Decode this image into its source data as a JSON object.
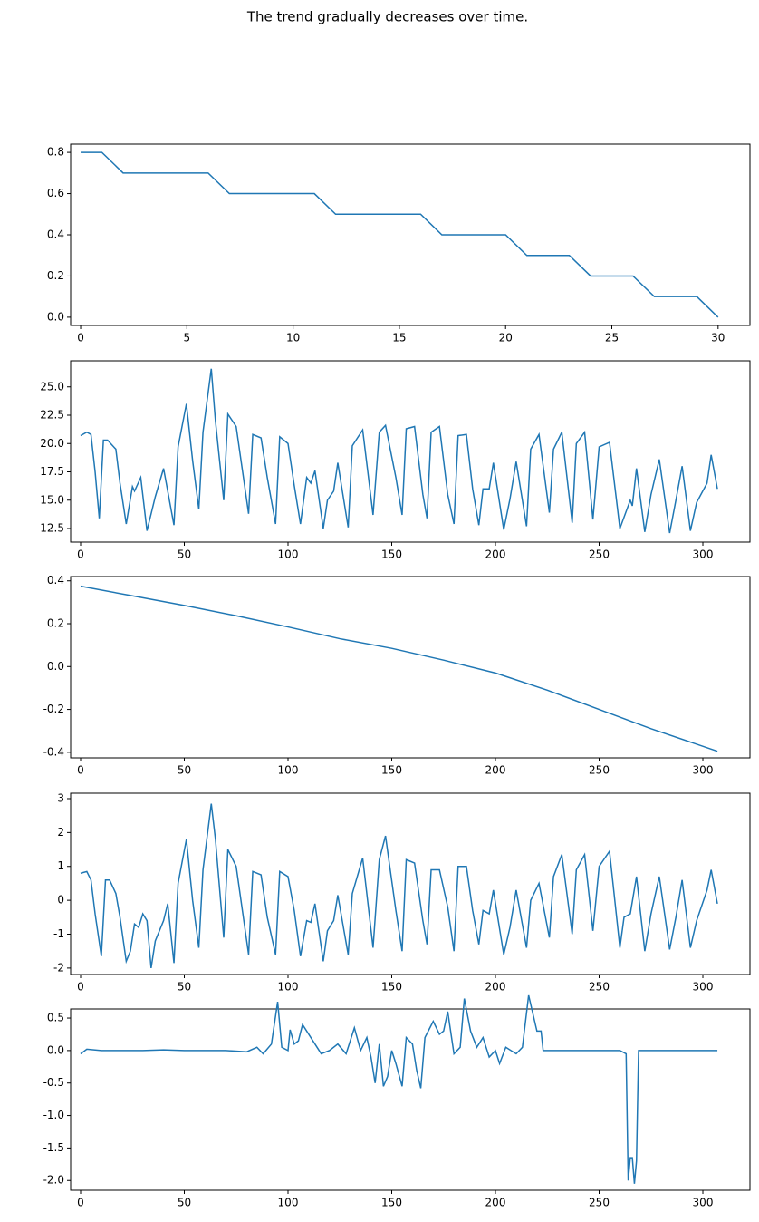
{
  "title": "The trend gradually decreases over time.",
  "chart_data": [
    {
      "type": "line",
      "color": "#1f77b4",
      "x": [
        0,
        1,
        2,
        3,
        4,
        5,
        6,
        7,
        8,
        9,
        10,
        11,
        12,
        13,
        14,
        15,
        16,
        17,
        18,
        19,
        20,
        21,
        22,
        23,
        24,
        25,
        26,
        27,
        28,
        29,
        30
      ],
      "values": [
        0.8,
        0.8,
        0.7,
        0.7,
        0.7,
        0.7,
        0.7,
        0.6,
        0.6,
        0.6,
        0.6,
        0.6,
        0.5,
        0.5,
        0.5,
        0.5,
        0.5,
        0.4,
        0.4,
        0.4,
        0.4,
        0.3,
        0.3,
        0.3,
        0.2,
        0.2,
        0.2,
        0.1,
        0.1,
        0.1,
        0.0
      ],
      "xlim": [
        -0.47,
        31.5
      ],
      "ylim": [
        -0.04,
        0.84
      ],
      "xticks": [
        0,
        5,
        10,
        15,
        20,
        25,
        30
      ],
      "yticks": [
        {
          "value": 0,
          "label": "0.0"
        },
        0.2,
        0.4,
        0.6,
        0.8
      ]
    },
    {
      "type": "line",
      "color": "#1f77b4",
      "x": [
        0,
        3,
        5,
        7,
        9,
        11,
        13,
        17,
        19,
        22,
        25,
        26,
        29,
        32,
        36,
        40,
        45,
        47,
        51,
        54,
        57,
        59,
        63,
        65,
        69,
        71,
        75,
        81,
        83,
        87,
        90,
        94,
        96,
        100,
        103,
        106,
        109,
        111,
        113,
        117,
        119,
        122,
        124,
        129,
        131,
        136,
        141,
        144,
        147,
        152,
        155,
        157,
        161,
        165,
        167,
        169,
        173,
        177,
        180,
        182,
        186,
        189,
        192,
        194,
        197,
        199,
        204,
        207,
        210,
        215,
        217,
        221,
        226,
        228,
        232,
        237,
        239,
        243,
        247,
        250,
        255,
        260,
        265,
        266,
        268,
        272,
        275,
        279,
        284,
        287,
        290,
        294,
        297,
        302,
        304,
        307
      ],
      "values": [
        20.7,
        21,
        20.8,
        17.5,
        13.4,
        20.3,
        20.3,
        19.5,
        16.5,
        12.9,
        16.2,
        15.8,
        17,
        12.3,
        15.3,
        17.8,
        12.8,
        19.7,
        23.5,
        18.5,
        14.2,
        21,
        26.6,
        22,
        15,
        22.6,
        21.5,
        13.8,
        20.8,
        20.5,
        17,
        12.9,
        20.6,
        20,
        16.3,
        12.9,
        17,
        16.5,
        17.6,
        12.5,
        15,
        15.8,
        18.3,
        12.6,
        19.8,
        21.2,
        13.7,
        21,
        21.6,
        17,
        13.7,
        21.3,
        21.5,
        15.5,
        13.4,
        21,
        21.5,
        15.5,
        12.9,
        20.7,
        20.8,
        16,
        12.8,
        16,
        16,
        18.3,
        12.4,
        15.1,
        18.4,
        12.7,
        19.5,
        20.8,
        13.9,
        19.5,
        21,
        13,
        20,
        21,
        13.3,
        19.7,
        20.1,
        12.5,
        15,
        14.5,
        17.8,
        12.2,
        15.5,
        18.6,
        12.1,
        15,
        18,
        12.3,
        14.8,
        16.5,
        19,
        16
      ],
      "xlim": [
        -4.8,
        322.7
      ],
      "ylim": [
        11.3,
        27.3
      ],
      "xticks": [
        0,
        50,
        100,
        150,
        200,
        250,
        300
      ],
      "yticks": [
        12.5,
        {
          "value": 15,
          "label": "15.0"
        },
        17.5,
        {
          "value": 20,
          "label": "20.0"
        },
        22.5,
        {
          "value": 25,
          "label": "25.0"
        }
      ]
    },
    {
      "type": "line",
      "color": "#1f77b4",
      "x": [
        0,
        25,
        50,
        75,
        100,
        125,
        150,
        175,
        200,
        225,
        250,
        275,
        307
      ],
      "values": [
        0.375,
        0.33,
        0.285,
        0.237,
        0.185,
        0.13,
        0.085,
        0.03,
        -0.03,
        -0.11,
        -0.2,
        -0.29,
        -0.395
      ],
      "xlim": [
        -4.8,
        322.7
      ],
      "ylim": [
        -0.426,
        0.42
      ],
      "xticks": [
        0,
        50,
        100,
        150,
        200,
        250,
        300
      ],
      "yticks": [
        -0.4,
        -0.2,
        {
          "value": 0,
          "label": "0.0"
        },
        0.2,
        0.4
      ]
    },
    {
      "type": "line",
      "color": "#1f77b4",
      "x": [
        0,
        3,
        5,
        7,
        10,
        12,
        14,
        17,
        19,
        22,
        24,
        26,
        28,
        30,
        32,
        34,
        36,
        40,
        42,
        45,
        47,
        51,
        54,
        57,
        59,
        63,
        65,
        69,
        71,
        75,
        81,
        83,
        87,
        90,
        94,
        96,
        100,
        103,
        106,
        109,
        111,
        113,
        117,
        119,
        122,
        124,
        129,
        131,
        136,
        141,
        144,
        147,
        152,
        155,
        157,
        161,
        165,
        167,
        169,
        173,
        177,
        180,
        182,
        186,
        189,
        192,
        194,
        197,
        199,
        204,
        207,
        210,
        215,
        217,
        221,
        226,
        228,
        232,
        237,
        239,
        243,
        247,
        250,
        255,
        260,
        262,
        265,
        268,
        272,
        275,
        279,
        284,
        287,
        290,
        294,
        297,
        302,
        304,
        307
      ],
      "values": [
        0.8,
        0.85,
        0.6,
        -0.4,
        -1.65,
        0.6,
        0.6,
        0.2,
        -0.5,
        -1.8,
        -1.5,
        -0.7,
        -0.8,
        -0.4,
        -0.6,
        -2.0,
        -1.2,
        -0.6,
        -0.1,
        -1.85,
        0.5,
        1.8,
        0.0,
        -1.4,
        0.9,
        2.85,
        1.8,
        -1.1,
        1.5,
        1.0,
        -1.6,
        0.85,
        0.75,
        -0.5,
        -1.6,
        0.85,
        0.7,
        -0.3,
        -1.65,
        -0.6,
        -0.65,
        -0.1,
        -1.8,
        -0.9,
        -0.6,
        0.15,
        -1.6,
        0.2,
        1.25,
        -1.4,
        1.2,
        1.9,
        -0.3,
        -1.5,
        1.2,
        1.1,
        -0.6,
        -1.3,
        0.9,
        0.9,
        -0.2,
        -1.5,
        1.0,
        1.0,
        -0.3,
        -1.3,
        -0.3,
        -0.4,
        0.3,
        -1.6,
        -0.8,
        0.3,
        -1.4,
        0.0,
        0.5,
        -1.1,
        0.7,
        1.35,
        -1.0,
        0.9,
        1.35,
        -0.9,
        1.0,
        1.45,
        -1.4,
        -0.5,
        -0.4,
        0.7,
        -1.5,
        -0.4,
        0.7,
        -1.45,
        -0.5,
        0.6,
        -1.4,
        -0.6,
        0.3,
        0.9,
        -0.1
      ],
      "xlim": [
        -4.8,
        322.7
      ],
      "ylim": [
        -2.19,
        3.16
      ],
      "xticks": [
        0,
        50,
        100,
        150,
        200,
        250,
        300
      ],
      "yticks": [
        -2,
        -1,
        0,
        1,
        2,
        3
      ]
    },
    {
      "type": "line",
      "color": "#1f77b4",
      "x": [
        0,
        3,
        10,
        20,
        30,
        40,
        50,
        60,
        70,
        80,
        85,
        88,
        92,
        95,
        97,
        100,
        101,
        103,
        105,
        107,
        110,
        113,
        116,
        120,
        124,
        128,
        132,
        135,
        138,
        140,
        142,
        144,
        146,
        148,
        150,
        152,
        155,
        157,
        160,
        162,
        164,
        166,
        170,
        173,
        175,
        177,
        180,
        183,
        185,
        188,
        191,
        194,
        197,
        200,
        202,
        205,
        210,
        213,
        216,
        220,
        222,
        223,
        230,
        240,
        250,
        260,
        263,
        264,
        265,
        266,
        267,
        268,
        269,
        275,
        285,
        295,
        307
      ],
      "values": [
        -0.05,
        0.02,
        0.0,
        0.0,
        0.0,
        0.01,
        0.0,
        0.0,
        0.0,
        -0.02,
        0.05,
        -0.05,
        0.1,
        0.75,
        0.05,
        0.0,
        0.32,
        0.1,
        0.15,
        0.4,
        0.25,
        0.1,
        -0.05,
        0.0,
        0.1,
        -0.05,
        0.35,
        0.0,
        0.2,
        -0.1,
        -0.5,
        0.1,
        -0.55,
        -0.4,
        0.0,
        -0.2,
        -0.55,
        0.2,
        0.1,
        -0.3,
        -0.58,
        0.2,
        0.45,
        0.25,
        0.3,
        0.6,
        -0.05,
        0.05,
        0.8,
        0.3,
        0.05,
        0.2,
        -0.1,
        0.0,
        -0.2,
        0.05,
        -0.05,
        0.05,
        0.85,
        0.3,
        0.3,
        0.0,
        0.0,
        0.0,
        0.0,
        0.0,
        -0.05,
        -2.0,
        -1.65,
        -1.65,
        -2.05,
        -1.7,
        0.0,
        0.0,
        0.0,
        0.0,
        0.0
      ],
      "xlim": [
        -4.8,
        322.7
      ],
      "ylim": [
        -2.15,
        0.64
      ],
      "xticks": [
        0,
        50,
        100,
        150,
        200,
        250,
        300
      ],
      "yticks": [
        {
          "value": -2,
          "label": "-2.0"
        },
        -1.5,
        {
          "value": -1,
          "label": "-1.0"
        },
        -0.5,
        {
          "value": 0,
          "label": "0.0"
        },
        0.5
      ]
    }
  ]
}
